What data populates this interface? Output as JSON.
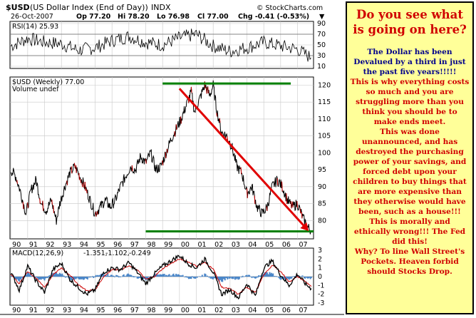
{
  "header": {
    "symbol": "$USD",
    "name": "(US Dollar Index (End of Day))",
    "exchange": "INDX",
    "watermark": "© StockCharts.com",
    "date": "26-Oct-2007",
    "op": "Op 77.20",
    "hi": "Hi 78.20",
    "lo": "Lo 76.98",
    "cl": "Cl 77.00",
    "chg": "Chg -0.41 (-0.53%)",
    "chg_marker": "▼"
  },
  "side_panel": {
    "title": "Do you see what is going on here?",
    "blue_text": "The Dollar has been Devalued by a third in just the past five years!!!!!",
    "red_text": "This is why everything costs so much and you are struggling more than you think you should be to make ends meet.\nThis was done unannounced, and has destroyed the purchasing power of your savings, and forced debt upon your children to buy things that are more expensive than they otherwise would have been, such as a house!!!\nThis is morally and ethically wrong!!! The Fed did this!\nWhy? To line Wall Street's Pockets. Heaven forbid should Stocks Drop."
  },
  "colors": {
    "price": "#000000",
    "price_down_accent": "#cc0000",
    "trend_arrow": "#e00000",
    "support_lines": "#008000",
    "macd_line": "#000000",
    "macd_signal": "#cc0000",
    "macd_hist": "#4a86c8",
    "rsi_line": "#000000",
    "side_bg": "#ffff99"
  },
  "chart_data": [
    {
      "type": "line",
      "panel": "rsi",
      "label": "RSI(14) 25.93",
      "ylim": [
        10,
        90
      ],
      "yticks": [
        10,
        30,
        50,
        70,
        90
      ],
      "reference_lines": [
        30,
        70
      ],
      "x": [
        "1990",
        "1991",
        "1992",
        "1993",
        "1994",
        "1995",
        "1996",
        "1997",
        "1998",
        "1999",
        "2000",
        "2001",
        "2002",
        "2003",
        "2004",
        "2005",
        "2006",
        "2007",
        "2007.8"
      ],
      "values": [
        48,
        62,
        55,
        52,
        40,
        45,
        58,
        66,
        55,
        50,
        63,
        70,
        48,
        38,
        45,
        55,
        48,
        42,
        26
      ]
    },
    {
      "type": "line",
      "panel": "price",
      "series_label": "$USD (Weekly) 77.00",
      "secondary_label": "Volume undef",
      "ylim": [
        75,
        122
      ],
      "yticks": [
        80,
        85,
        90,
        95,
        100,
        105,
        110,
        115,
        120
      ],
      "grid": true,
      "x": [
        1990.0,
        1990.3,
        1990.6,
        1990.9,
        1991.2,
        1991.5,
        1991.8,
        1992.1,
        1992.4,
        1992.7,
        1992.9,
        1993.2,
        1993.5,
        1993.8,
        1994.1,
        1994.4,
        1994.7,
        1995.0,
        1995.3,
        1995.6,
        1995.9,
        1996.2,
        1996.5,
        1996.8,
        1997.1,
        1997.4,
        1997.7,
        1998.0,
        1998.3,
        1998.6,
        1998.9,
        1999.2,
        1999.5,
        1999.8,
        2000.1,
        2000.4,
        2000.7,
        2000.9,
        2001.2,
        2001.5,
        2001.8,
        2002.0,
        2002.2,
        2002.5,
        2002.8,
        2003.1,
        2003.4,
        2003.7,
        2004.0,
        2004.3,
        2004.6,
        2004.9,
        2005.2,
        2005.5,
        2005.8,
        2006.1,
        2006.4,
        2006.7,
        2007.0,
        2007.3,
        2007.6,
        2007.82
      ],
      "values": [
        95,
        93,
        88,
        82,
        89,
        92,
        85,
        83,
        86,
        80,
        85,
        90,
        94,
        96,
        93,
        90,
        86,
        82,
        84,
        86,
        84,
        86,
        90,
        93,
        96,
        95,
        99,
        97,
        100,
        95,
        96,
        100,
        104,
        107,
        110,
        114,
        118,
        112,
        116,
        120,
        117,
        120,
        113,
        106,
        105,
        102,
        96,
        94,
        88,
        90,
        84,
        82,
        84,
        90,
        92,
        90,
        86,
        84,
        85,
        81,
        78,
        77
      ]
    },
    {
      "type": "line",
      "panel": "macd",
      "label": "MACD(12,26,9)",
      "macd": -1.351,
      "signal": -1.102,
      "histogram": -0.249,
      "ylim": [
        -3,
        3
      ],
      "yticks": [
        -3,
        -2,
        -1,
        0,
        1,
        2,
        3
      ],
      "x": [
        1990.0,
        1990.5,
        1991.0,
        1991.5,
        1992.0,
        1992.5,
        1993.0,
        1993.5,
        1994.0,
        1994.5,
        1995.0,
        1995.5,
        1996.0,
        1996.5,
        1997.0,
        1997.5,
        1998.0,
        1998.5,
        1999.0,
        1999.5,
        2000.0,
        2000.5,
        2001.0,
        2001.5,
        2002.0,
        2002.5,
        2003.0,
        2003.5,
        2004.0,
        2004.5,
        2005.0,
        2005.5,
        2006.0,
        2006.5,
        2007.0,
        2007.5,
        2007.82
      ],
      "macd_values": [
        0.5,
        -1.5,
        1.2,
        -0.5,
        -1.8,
        0.8,
        1.5,
        -0.3,
        -1.2,
        -2.0,
        -1.5,
        0.5,
        1.0,
        0.8,
        1.6,
        0.5,
        -0.8,
        0.3,
        1.2,
        1.8,
        2.4,
        1.5,
        1.0,
        2.0,
        0.5,
        -2.0,
        -1.5,
        -2.4,
        -0.8,
        -2.2,
        1.0,
        1.8,
        0.2,
        -1.0,
        0.3,
        -0.9,
        -1.35
      ],
      "signal_values": [
        0.3,
        -0.8,
        0.6,
        -0.2,
        -1.2,
        0.2,
        1.0,
        0.2,
        -0.9,
        -1.6,
        -1.5,
        0.0,
        0.8,
        0.8,
        1.2,
        0.8,
        -0.3,
        0.0,
        0.9,
        1.5,
        2.0,
        1.7,
        1.2,
        1.6,
        0.9,
        -1.2,
        -1.4,
        -2.0,
        -1.2,
        -1.8,
        0.2,
        1.3,
        0.6,
        -0.6,
        0.0,
        -0.6,
        -1.1
      ]
    }
  ],
  "x_axis": {
    "labels": [
      "90",
      "91",
      "92",
      "93",
      "94",
      "95",
      "96",
      "97",
      "98",
      "99",
      "00",
      "01",
      "02",
      "03",
      "04",
      "05",
      "06",
      "07"
    ],
    "years": [
      1990,
      1991,
      1992,
      1993,
      1994,
      1995,
      1996,
      1997,
      1998,
      1999,
      2000,
      2001,
      2002,
      2003,
      2004,
      2005,
      2006,
      2007
    ]
  },
  "annotations": {
    "top_line_value": 120.5,
    "top_line_start": 1999.0,
    "top_line_end": 2006.6,
    "bottom_line_value": 76.8,
    "bottom_line_start": 1998.0,
    "bottom_line_end": 2007.95,
    "arrow_start": [
      2000.0,
      119
    ],
    "arrow_end": [
      2007.55,
      77.5
    ]
  }
}
